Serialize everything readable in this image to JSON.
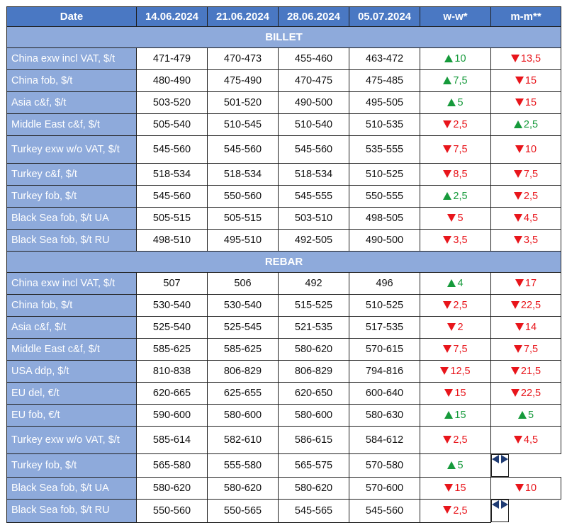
{
  "header": {
    "date": "Date",
    "dates": [
      "14.06.2024",
      "21.06.2024",
      "28.06.2024",
      "05.07.2024"
    ],
    "ww": "w-w*",
    "mm": "m-m**"
  },
  "colors": {
    "header_bg": "#4a78c3",
    "label_bg": "#8eaadb",
    "up": "#169a3b",
    "down": "#e8151b",
    "flat": "#1f3b73"
  },
  "sections": [
    {
      "title": "BILLET",
      "rows": [
        {
          "label": "China exw incl VAT, $/t",
          "values": [
            "471-479",
            "470-473",
            "455-460",
            "463-472"
          ],
          "ww": {
            "dir": "up",
            "value": "10"
          },
          "mm": {
            "dir": "down",
            "value": "13,5"
          }
        },
        {
          "label": "China fob, $/t",
          "values": [
            "480-490",
            "475-490",
            "470-475",
            "475-485"
          ],
          "ww": {
            "dir": "up",
            "value": "7,5"
          },
          "mm": {
            "dir": "down",
            "value": "15"
          }
        },
        {
          "label": "Asia c&f, $/t",
          "values": [
            "503-520",
            "501-520",
            "490-500",
            "495-505"
          ],
          "ww": {
            "dir": "up",
            "value": "5"
          },
          "mm": {
            "dir": "down",
            "value": "15"
          }
        },
        {
          "label": "Middle East c&f, $/t",
          "values": [
            "505-540",
            "510-545",
            "510-540",
            "510-535"
          ],
          "ww": {
            "dir": "down",
            "value": "2,5"
          },
          "mm": {
            "dir": "up",
            "value": "2,5"
          }
        },
        {
          "label": "Turkey exw w/o VAT, $/t",
          "tall": true,
          "values": [
            "545-560",
            "545-560",
            "545-560",
            "535-555"
          ],
          "ww": {
            "dir": "down",
            "value": "7,5"
          },
          "mm": {
            "dir": "down",
            "value": "10"
          }
        },
        {
          "label": "Turkey c&f, $/t",
          "values": [
            "518-534",
            "518-534",
            "518-534",
            "510-525"
          ],
          "ww": {
            "dir": "down",
            "value": "8,5"
          },
          "mm": {
            "dir": "down",
            "value": "7,5"
          }
        },
        {
          "label": "Turkey fob, $/t",
          "values": [
            "545-560",
            "550-560",
            "545-555",
            "550-555"
          ],
          "ww": {
            "dir": "up",
            "value": "2,5"
          },
          "mm": {
            "dir": "down",
            "value": "2,5"
          }
        },
        {
          "label": "Black Sea fob, $/t UA",
          "values": [
            "505-515",
            "505-515",
            "503-510",
            "498-505"
          ],
          "ww": {
            "dir": "down",
            "value": "5"
          },
          "mm": {
            "dir": "down",
            "value": "4,5"
          }
        },
        {
          "label": "Black Sea fob, $/t RU",
          "values": [
            "498-510",
            "495-510",
            "492-505",
            "490-500"
          ],
          "ww": {
            "dir": "down",
            "value": "3,5"
          },
          "mm": {
            "dir": "down",
            "value": "3,5"
          }
        }
      ]
    },
    {
      "title": "REBAR",
      "rows": [
        {
          "label": "China exw incl VAT, $/t",
          "values": [
            "507",
            "506",
            "492",
            "496"
          ],
          "ww": {
            "dir": "up",
            "value": "4"
          },
          "mm": {
            "dir": "down",
            "value": "17"
          }
        },
        {
          "label": "China fob, $/t",
          "values": [
            "530-540",
            "530-540",
            "515-525",
            "510-525"
          ],
          "ww": {
            "dir": "down",
            "value": "2,5"
          },
          "mm": {
            "dir": "down",
            "value": "22,5"
          }
        },
        {
          "label": "Asia c&f, $/t",
          "values": [
            "525-540",
            "525-545",
            "521-535",
            "517-535"
          ],
          "ww": {
            "dir": "down",
            "value": "2"
          },
          "mm": {
            "dir": "down",
            "value": "14"
          }
        },
        {
          "label": "Middle East c&f, $/t",
          "values": [
            "585-625",
            "585-625",
            "580-620",
            "570-615"
          ],
          "ww": {
            "dir": "down",
            "value": "7,5"
          },
          "mm": {
            "dir": "down",
            "value": "7,5"
          }
        },
        {
          "label": "USA ddp, $/t",
          "values": [
            "810-838",
            "806-829",
            "806-829",
            "794-816"
          ],
          "ww": {
            "dir": "down",
            "value": "12,5"
          },
          "mm": {
            "dir": "down",
            "value": "21,5"
          }
        },
        {
          "label": "EU del, €/t",
          "values": [
            "620-665",
            "625-655",
            "620-650",
            "600-640"
          ],
          "ww": {
            "dir": "down",
            "value": "15"
          },
          "mm": {
            "dir": "down",
            "value": "22,5"
          }
        },
        {
          "label": "EU fob, €/t",
          "values": [
            "590-600",
            "580-600",
            "580-600",
            "580-630"
          ],
          "ww": {
            "dir": "up",
            "value": "15"
          },
          "mm": {
            "dir": "up",
            "value": "5"
          }
        },
        {
          "label": "Turkey exw w/o VAT, $/t",
          "tall": true,
          "values": [
            "585-614",
            "582-610",
            "586-615",
            "584-612"
          ],
          "ww": {
            "dir": "down",
            "value": "2,5"
          },
          "mm": {
            "dir": "down",
            "value": "4,5"
          }
        },
        {
          "label": "Turkey fob, $/t",
          "values": [
            "565-580",
            "555-580",
            "565-575",
            "570-580"
          ],
          "ww": {
            "dir": "up",
            "value": "5"
          },
          "mm": {
            "dir": "flat",
            "value": ""
          }
        },
        {
          "label": "Black Sea fob, $/t UA",
          "values": [
            "580-620",
            "580-620",
            "580-620",
            "570-600"
          ],
          "ww": {
            "dir": "down",
            "value": "15"
          },
          "mm": {
            "dir": "down",
            "value": "10"
          }
        },
        {
          "label": "Black Sea fob, $/t RU",
          "values": [
            "550-560",
            "550-565",
            "545-565",
            "545-560"
          ],
          "ww": {
            "dir": "down",
            "value": "2,5"
          },
          "mm": {
            "dir": "flat",
            "value": ""
          }
        }
      ]
    }
  ]
}
